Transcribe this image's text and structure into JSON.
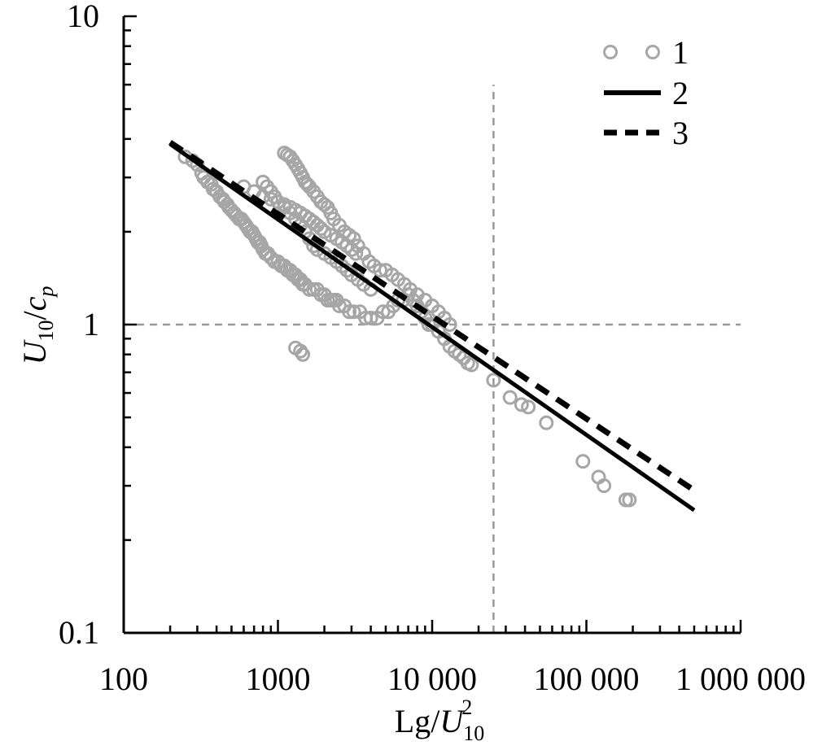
{
  "chart_data": {
    "type": "scatter",
    "x_scale": "log",
    "y_scale": "log",
    "xlim": [
      100,
      1000000
    ],
    "ylim": [
      0.1,
      10
    ],
    "grid": false,
    "legend_position": "top-right",
    "x_ticks": [
      100,
      1000,
      10000,
      100000,
      1000000
    ],
    "x_tick_labels": [
      "100",
      "1000",
      "10 000",
      "100 000",
      "1 000 000"
    ],
    "y_ticks": [
      0.1,
      1,
      10
    ],
    "y_tick_labels": [
      "0.1",
      "1",
      "10"
    ],
    "xlabel": {
      "main": "Lg/",
      "var": "U",
      "sub": "10",
      "sup": "2"
    },
    "ylabel": {
      "var": "U",
      "sub": "10",
      "mid": "/",
      "var2": "c",
      "sub2": "p"
    },
    "reference_lines": [
      {
        "orientation": "vertical",
        "x": 25000,
        "y_from": 0.1,
        "y_to": 6.0,
        "color": "#999999",
        "style": "dashed"
      },
      {
        "orientation": "horizontal",
        "y": 1,
        "x_from": 100,
        "x_to": 1000000,
        "color": "#999999",
        "style": "dashed"
      }
    ],
    "series": [
      {
        "name": "1",
        "kind": "scatter",
        "marker": "open-circle",
        "color": "#a6a6a6",
        "x": [
          250,
          280,
          300,
          320,
          330,
          350,
          370,
          380,
          400,
          420,
          440,
          450,
          470,
          480,
          500,
          520,
          540,
          560,
          580,
          600,
          620,
          640,
          660,
          680,
          700,
          720,
          740,
          760,
          780,
          800,
          830,
          860,
          900,
          950,
          1000,
          1050,
          1100,
          1150,
          1200,
          1250,
          1300,
          1350,
          1400,
          1450,
          1500,
          1600,
          1700,
          1800,
          1900,
          2000,
          2100,
          2200,
          2300,
          2400,
          2500,
          2700,
          2900,
          3100,
          3400,
          3700,
          4000,
          4400,
          4800,
          5200,
          5600,
          6000,
          6500,
          7000,
          7500,
          8000,
          8500,
          9000,
          9500,
          10000,
          11000,
          12000,
          13000,
          14000,
          15000,
          16000,
          17000,
          18000,
          600,
          700,
          800,
          900,
          1000,
          1100,
          1200,
          1300,
          1400,
          1500,
          1600,
          1700,
          1800,
          1900,
          2000,
          2200,
          2400,
          2600,
          2800,
          3000,
          3200,
          1100,
          1150,
          1200,
          1250,
          1300,
          1350,
          1400,
          1450,
          1500,
          1550,
          1600,
          1700,
          1800,
          1900,
          2000,
          2100,
          2200,
          2300,
          2500,
          2700,
          2900,
          3100,
          3300,
          3600,
          3900,
          4200,
          4600,
          5000,
          5500,
          6000,
          6600,
          7200,
          8000,
          9000,
          10000,
          11000,
          12000,
          13000,
          800,
          850,
          900,
          950,
          1000,
          1100,
          1200,
          1300,
          1400,
          1500,
          1600,
          1700,
          1800,
          2000,
          2200,
          2400,
          2600,
          2800,
          3000,
          3300,
          3600,
          4000,
          1300,
          1400,
          1450,
          25000,
          32000,
          38000,
          42000,
          55000,
          95000,
          120000,
          130000,
          180000,
          190000
        ],
        "y": [
          3.5,
          3.4,
          3.3,
          3.1,
          3.0,
          2.9,
          2.85,
          2.75,
          2.7,
          2.6,
          2.55,
          2.5,
          2.45,
          2.4,
          2.35,
          2.3,
          2.25,
          2.2,
          2.2,
          2.15,
          2.1,
          2.05,
          2.0,
          2.0,
          1.95,
          1.9,
          1.85,
          1.85,
          1.8,
          1.75,
          1.7,
          1.7,
          1.65,
          1.6,
          1.6,
          1.55,
          1.55,
          1.5,
          1.5,
          1.45,
          1.45,
          1.4,
          1.4,
          1.35,
          1.35,
          1.3,
          1.3,
          1.3,
          1.25,
          1.25,
          1.2,
          1.2,
          1.2,
          1.2,
          1.15,
          1.15,
          1.1,
          1.1,
          1.1,
          1.05,
          1.05,
          1.05,
          1.1,
          1.1,
          1.15,
          1.2,
          1.2,
          1.25,
          1.2,
          1.15,
          1.1,
          1.05,
          1.0,
          1.0,
          0.95,
          0.9,
          0.85,
          0.82,
          0.8,
          0.78,
          0.75,
          0.74,
          2.8,
          2.7,
          2.6,
          2.55,
          2.5,
          2.45,
          2.4,
          2.35,
          2.3,
          2.25,
          2.2,
          2.15,
          2.1,
          2.05,
          2.0,
          1.95,
          1.9,
          1.85,
          1.8,
          1.75,
          1.7,
          3.6,
          3.55,
          3.5,
          3.4,
          3.3,
          3.2,
          3.1,
          3.0,
          2.9,
          2.85,
          2.8,
          2.7,
          2.6,
          2.5,
          2.45,
          2.4,
          2.3,
          2.2,
          2.1,
          2.0,
          1.95,
          1.9,
          1.8,
          1.7,
          1.6,
          1.55,
          1.5,
          1.5,
          1.45,
          1.4,
          1.35,
          1.3,
          1.25,
          1.2,
          1.15,
          1.1,
          1.05,
          1.0,
          2.9,
          2.8,
          2.7,
          2.6,
          2.5,
          2.4,
          2.3,
          2.2,
          2.1,
          2.0,
          1.9,
          1.8,
          1.75,
          1.7,
          1.65,
          1.6,
          1.55,
          1.5,
          1.45,
          1.4,
          1.35,
          1.3,
          0.84,
          0.82,
          0.8,
          0.66,
          0.58,
          0.55,
          0.54,
          0.48,
          0.36,
          0.32,
          0.3,
          0.27,
          0.27
        ]
      },
      {
        "name": "2",
        "kind": "line",
        "color": "#000000",
        "style": "solid",
        "x": [
          200,
          500000
        ],
        "y": [
          3.85,
          0.25
        ]
      },
      {
        "name": "3",
        "kind": "line",
        "color": "#000000",
        "style": "dashed",
        "x": [
          200,
          500000
        ],
        "y": [
          3.9,
          0.29
        ]
      }
    ]
  }
}
